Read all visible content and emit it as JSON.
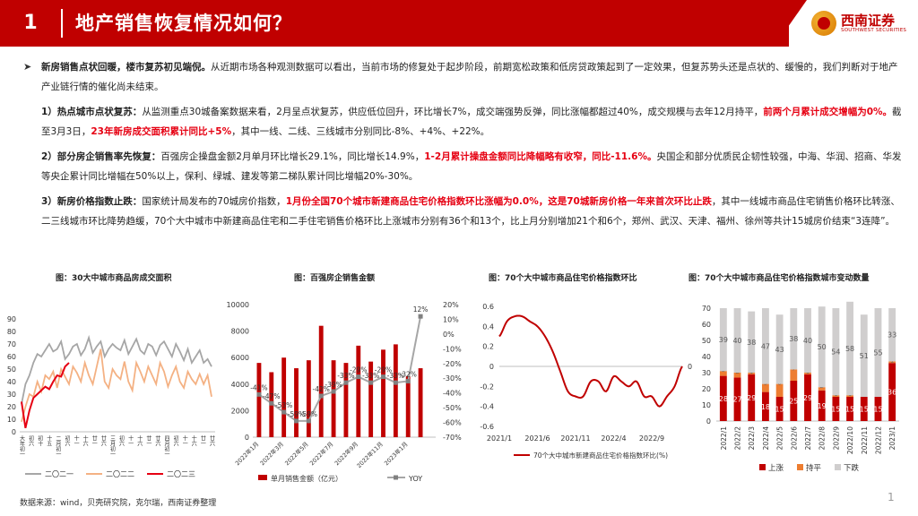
{
  "header": {
    "section_number": "1",
    "title": "地产销售恢复情况如何？",
    "logo_cn": "西南证券",
    "logo_en": "SOUTHWEST SECURITIES"
  },
  "content": {
    "intro": {
      "bullet": "➤",
      "bold": "新房销售点状回暖，楼市复苏初见端倪。",
      "text": "从近期市场各种观测数据可以看出，当前市场的修复处于起步阶段，前期宽松政策和低房贷政策起到了一定效果，但复苏势头还是点状的、缓慢的，我们判断对于地产产业链行情的催化尚未结束。"
    },
    "p1": {
      "bold": "1）热点城市点状复苏：",
      "text1": "从监测重点30城备案数据来看，2月呈点状复苏，供应低位回升，环比增长7%，成交端强势反弹，同比涨幅都超过40%，成交规模与去年12月持平，",
      "red": "前两个月累计成交增幅为0%。",
      "text2": "截至3月3日，",
      "red2": "23年新房成交面积累计同比+5%",
      "text3": "，其中一线、二线、三线城市分别同比-8%、+4%、+22%。"
    },
    "p2": {
      "bold": "2）部分房企销售率先恢复：",
      "text1": "百强房企操盘金额2月单月环比增长29.1%，同比增长14.9%，",
      "red": "1-2月累计操盘金额同比降幅略有收窄，同比-11.6%。",
      "text2": "央国企和部分优质民企韧性较强，中海、华润、招商、华发等央企累计同比增幅在50%以上，保利、绿城、建发等第二梯队累计同比增幅20%-30%。"
    },
    "p3": {
      "bold": "3）新房价格指数止跌：",
      "text1": "国家统计局发布的70城房价指数，",
      "red": "1月份全国70个城市新建商品住宅价格指数环比涨幅为0.0%，这是70城新房价格一年来首次环比止跌",
      "text2": "，其中一线城市商品住宅销售价格环比转涨、二三线城市环比降势趋缓，70个大中城市中新建商品住宅和二手住宅销售价格环比上涨城市分别有36个和13个，比上月分别增加21个和6个，郑州、武汉、天津、福州、徐州等共计15城房价结束“3连降”。"
    }
  },
  "chart_data": [
    {
      "type": "line",
      "title": "图：30大中城市商品房成交面积",
      "ylim": [
        0,
        90
      ],
      "yticks": [
        "0",
        "10",
        "20",
        "30",
        "40",
        "50",
        "60",
        "70",
        "80",
        "90"
      ],
      "xticks": [
        "大年初一",
        "初六",
        "初十",
        "十五",
        "二月初一",
        "初六",
        "十一",
        "十六",
        "廿一",
        "廿六",
        "三月初一",
        "初六",
        "十一",
        "十六",
        "廿一",
        "廿六",
        "四月初一",
        "初六",
        "十一",
        "十六",
        "廿一",
        "廿六"
      ],
      "legend": [
        "二〇二一",
        "二〇二二",
        "二〇二三"
      ],
      "series": [
        {
          "name": "二〇二一",
          "color": "#a6a6a6",
          "values": [
            22,
            38,
            45,
            55,
            62,
            60,
            65,
            70,
            64,
            66,
            72,
            58,
            62,
            68,
            70,
            61,
            66,
            75,
            63,
            68,
            72,
            60,
            66,
            70,
            67,
            65,
            73,
            62,
            68,
            74,
            65,
            62,
            70,
            68,
            61,
            69,
            72,
            66,
            60,
            70,
            64,
            57,
            66,
            55,
            60,
            65,
            55,
            58,
            52
          ]
        },
        {
          "name": "二〇二二",
          "color": "#f4b183",
          "values": [
            8,
            20,
            30,
            28,
            40,
            32,
            45,
            42,
            48,
            35,
            50,
            44,
            38,
            52,
            47,
            40,
            55,
            45,
            38,
            52,
            66,
            40,
            35,
            50,
            45,
            42,
            56,
            40,
            33,
            55,
            48,
            40,
            52,
            45,
            38,
            55,
            48,
            36,
            45,
            52,
            40,
            35,
            48,
            42,
            38,
            46,
            38,
            45,
            28
          ]
        },
        {
          "name": "二〇二三",
          "color": "#e60012",
          "values": [
            24,
            3,
            17,
            27,
            30,
            33,
            36,
            34,
            40,
            45,
            44,
            52,
            55
          ]
        }
      ]
    },
    {
      "type": "bar",
      "title": "图：百强房企销售金额",
      "categories": [
        "2022年1月",
        "2022年2月",
        "2022年3月",
        "2022年4月",
        "2022年5月",
        "2022年6月",
        "2022年7月",
        "2022年8月",
        "2022年9月",
        "2022年10月",
        "2022年11月",
        "2022年12月",
        "2023年1月",
        "2023年2月"
      ],
      "category_ticks": [
        "2022年1月",
        "2022年3月",
        "2022年5月",
        "2022年7月",
        "2022年9月",
        "2022年11月",
        "2023年1月"
      ],
      "values": [
        5600,
        4900,
        6000,
        5200,
        5800,
        8400,
        5800,
        5600,
        6900,
        5700,
        6600,
        7000,
        4600,
        5200
      ],
      "yoy": [
        -41,
        -47,
        -53,
        -59,
        -59,
        -42,
        -39,
        -33,
        -29,
        -33,
        -29,
        -33,
        -32,
        12
      ],
      "yoy_labels": [
        "-41%",
        "-47%",
        "-53%",
        "-59%",
        "-59%",
        "-42%",
        "-39%",
        "-33%",
        "-29%",
        "-33%",
        "-29%",
        "-33%",
        "-32%",
        "12%"
      ],
      "ylim": [
        0,
        10000
      ],
      "yticks": [
        "0",
        "2000",
        "4000",
        "6000",
        "8000",
        "10000"
      ],
      "y2lim": [
        -70,
        20
      ],
      "y2ticks": [
        "-70%",
        "-60%",
        "-50%",
        "-40%",
        "-30%",
        "-20%",
        "-10%",
        "0%",
        "10%",
        "20%"
      ],
      "legend": [
        "单月销售金额（亿元）",
        "YOY"
      ],
      "bar_color": "#c00000",
      "line_color": "#a6a6a6"
    },
    {
      "type": "line",
      "title": "图：70个大中城市商品住宅价格指数环比",
      "x": [
        "2021/1",
        "2021/2",
        "2021/3",
        "2021/4",
        "2021/5",
        "2021/6",
        "2021/7",
        "2021/8",
        "2021/9",
        "2021/10",
        "2021/11",
        "2021/12",
        "2022/1",
        "2022/2",
        "2022/3",
        "2022/4",
        "2022/5",
        "2022/6",
        "2022/7",
        "2022/8",
        "2022/9",
        "2022/10",
        "2022/11",
        "2022/12",
        "2023/1"
      ],
      "values": [
        0.3,
        0.45,
        0.5,
        0.5,
        0.45,
        0.4,
        0.3,
        0.15,
        -0.05,
        -0.25,
        -0.3,
        -0.3,
        -0.15,
        -0.15,
        -0.25,
        -0.1,
        -0.15,
        -0.2,
        -0.15,
        -0.3,
        -0.3,
        -0.4,
        -0.3,
        -0.2,
        0.0
      ],
      "xticks": [
        "2021/1",
        "2021/6",
        "2021/11",
        "2022/4",
        "2022/9"
      ],
      "ylim": [
        -0.6,
        0.6
      ],
      "yticks": [
        "-0.6",
        "-0.4",
        "-0.2",
        "0",
        "0.2",
        "0.4",
        "0.6"
      ],
      "end_label": "0",
      "legend": "70个大中城市新建商品住宅价格指数环比(%)",
      "color": "#c00000"
    },
    {
      "type": "bar",
      "stacked": true,
      "title": "图：70个大中城市商品住宅价格指数城市变动数量",
      "categories": [
        "2022/1",
        "2022/2",
        "2022/3",
        "2022/4",
        "2022/5",
        "2022/6",
        "2022/7",
        "2022/8",
        "2022/9",
        "2022/10",
        "2022/11",
        "2022/12",
        "2023/1"
      ],
      "series": [
        {
          "name": "上涨",
          "color": "#c00000",
          "values": [
            28,
            27,
            29,
            18,
            15,
            25,
            29,
            19,
            15,
            15,
            15,
            15,
            36
          ]
        },
        {
          "name": "持平",
          "color": "#ed7d31",
          "values": [
            3,
            3,
            1,
            5,
            8,
            7,
            1,
            2,
            1,
            1,
            0,
            0,
            1
          ]
        },
        {
          "name": "下跌",
          "color": "#d0cece",
          "values": [
            39,
            40,
            38,
            47,
            43,
            38,
            40,
            50,
            54,
            58,
            51,
            55,
            33
          ]
        }
      ],
      "label_values": {
        "up": [
          "28",
          "27",
          "29",
          "18",
          "15",
          "25",
          "29",
          "19",
          "15",
          "15",
          "15",
          "15",
          "36"
        ],
        "flat": [
          "3",
          "3",
          "1",
          "5",
          "8",
          "7",
          "1",
          "2",
          "1",
          "1",
          "",
          "",
          "1"
        ],
        "down": [
          "39",
          "40",
          "38",
          "47",
          "43",
          "38",
          "40",
          "50",
          "54",
          "58",
          "51",
          "55",
          "33"
        ]
      },
      "ylim": [
        0,
        70
      ],
      "yticks": [
        "0",
        "10",
        "20",
        "30",
        "40",
        "50",
        "60",
        "70"
      ],
      "legend": [
        "上涨",
        "持平",
        "下跌"
      ]
    }
  ],
  "footer": {
    "source": "数据来源：wind，贝壳研究院，克尔瑞，西南证券整理",
    "page": "1"
  }
}
